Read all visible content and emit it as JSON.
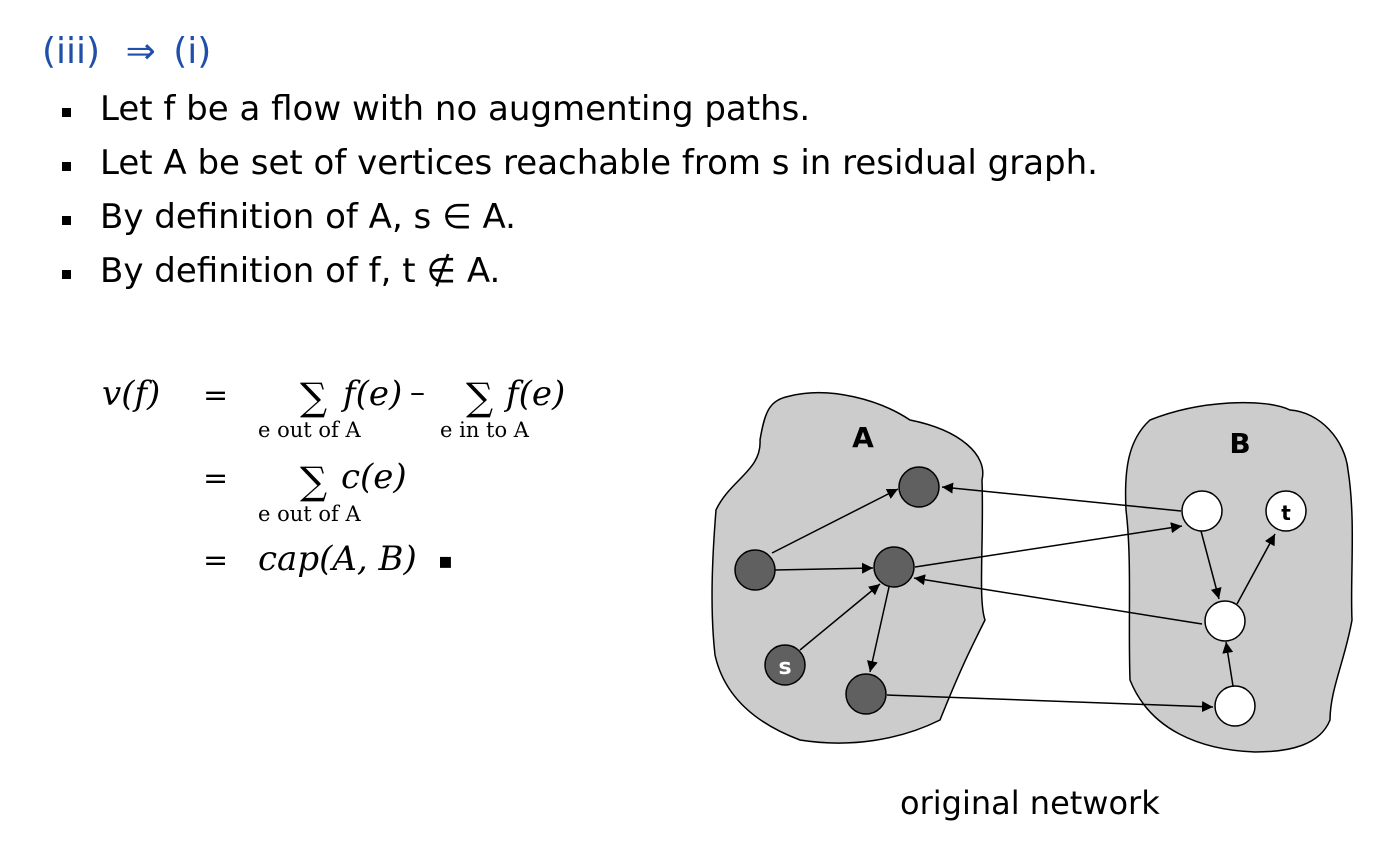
{
  "heading": {
    "left": "(iii)",
    "arrow": "⇒",
    "right": "(i)"
  },
  "bullets": [
    {
      "text": "Let f be a flow with no augmenting paths."
    },
    {
      "text": "Let A be set of vertices reachable from s in residual graph."
    },
    {
      "text": "By definition of A, s ∈ A."
    },
    {
      "text": "By definition of f, t ∉ A."
    }
  ],
  "equation": {
    "lhs": "v(f)",
    "eq1": "=",
    "eq2": "=",
    "eq3": "=",
    "sum_symbol": "∑",
    "f_e": "f(e)",
    "minus": "–",
    "sub_out": "e out of A",
    "sub_in": "e in to A",
    "c_e": "c(e)",
    "cap": "cap(A, B)",
    "qed": "▪"
  },
  "diagram": {
    "set_a_label": "A",
    "set_b_label": "B",
    "source_label": "s",
    "sink_label": "t",
    "colors": {
      "region_fill": "#cccccc",
      "filled_node": "#606060",
      "empty_node": "#ffffff",
      "stroke": "#000000"
    }
  },
  "caption": "original network"
}
